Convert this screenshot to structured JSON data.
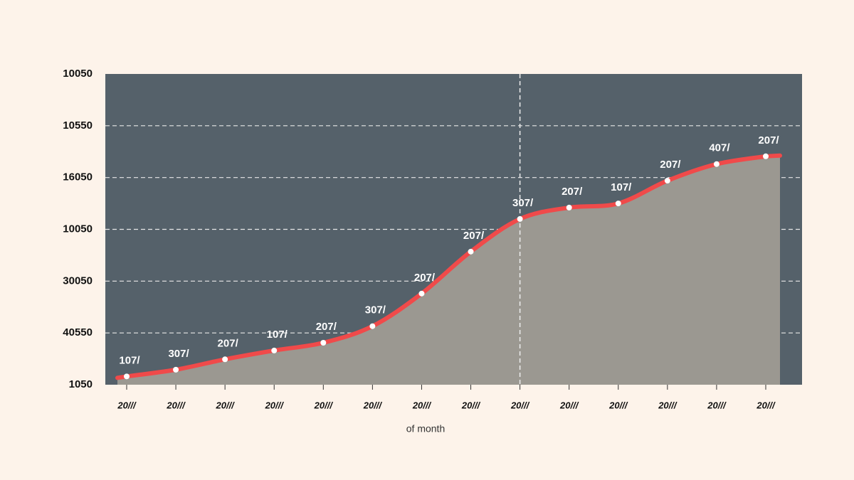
{
  "chart_data": {
    "type": "area-line",
    "x_label": "of month",
    "categories": [
      "20///",
      "20///",
      "20///",
      "20///",
      "20///",
      "20///",
      "20///",
      "20///",
      "20///",
      "20///",
      "20///",
      "20///",
      "20///",
      "20///"
    ],
    "values": [
      0.16,
      0.29,
      0.49,
      0.66,
      0.81,
      1.13,
      1.76,
      2.57,
      3.2,
      3.42,
      3.5,
      3.94,
      4.26,
      4.41
    ],
    "value_labels": [
      "107/",
      "307/",
      "207/",
      "107/",
      "207/",
      "307/",
      "207/",
      "207/",
      "307/",
      "207/",
      "107/",
      "207/",
      "407/",
      "207/"
    ],
    "ylim": [
      0,
      6
    ],
    "yticks": [
      {
        "value": 0,
        "label": "1050"
      },
      {
        "value": 1,
        "label": "40550"
      },
      {
        "value": 2,
        "label": "30050"
      },
      {
        "value": 3,
        "label": "10050"
      },
      {
        "value": 4,
        "label": "16050"
      },
      {
        "value": 5,
        "label": "10550"
      },
      {
        "value": 6,
        "label": "10050"
      }
    ],
    "grid": true,
    "line_color": "#f04a4a",
    "area_color": "#9b9891",
    "plot_background": "#55616a",
    "highlight_category_index": 8
  }
}
